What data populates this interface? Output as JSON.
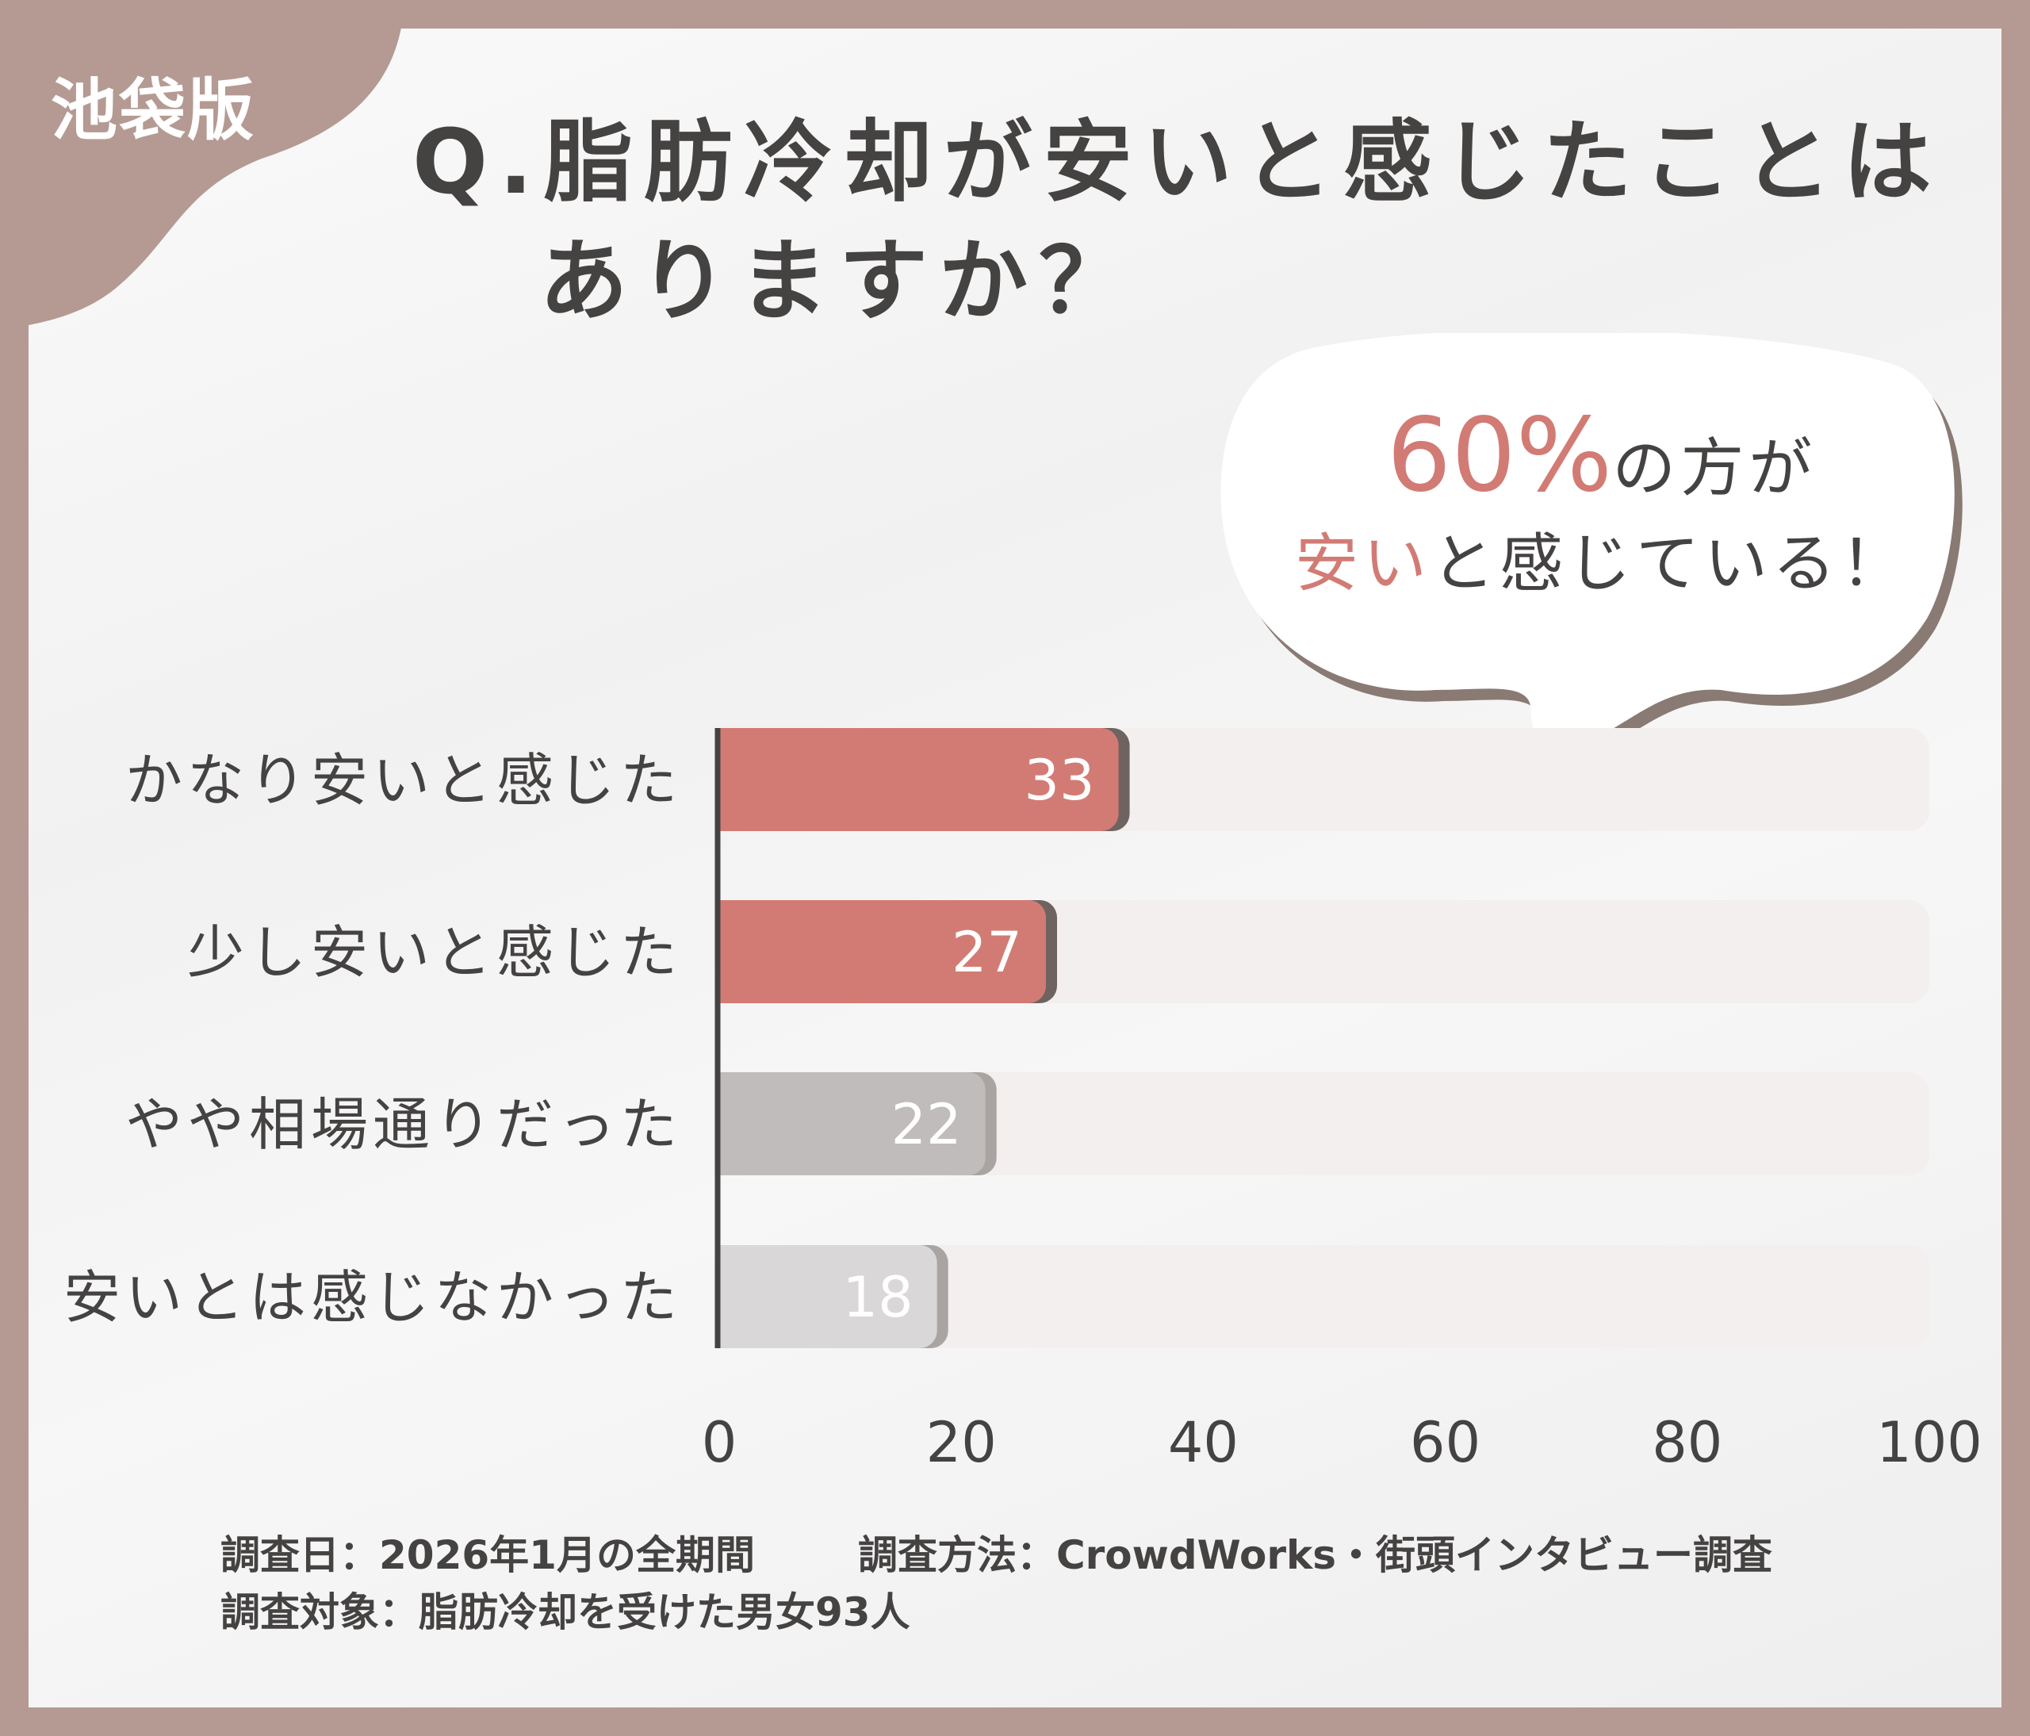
{
  "badge": "池袋版",
  "title": {
    "line1": "Q.脂肪冷却が安いと感じたことは",
    "line2": "ありますか？"
  },
  "callout": {
    "percent": "60%",
    "text1": "の方が",
    "highlight": "安い",
    "text2": "と感じている！"
  },
  "chart_data": {
    "type": "bar",
    "orientation": "horizontal",
    "categories": [
      "かなり安いと感じた",
      "少し安いと感じた",
      "やや相場通りだった",
      "安いとは感じなかった"
    ],
    "values": [
      33,
      27,
      22,
      18
    ],
    "xlim": [
      0,
      100
    ],
    "xticks": [
      "0",
      "20",
      "40",
      "60",
      "80",
      "100"
    ],
    "bar_colors": [
      "#d27b74",
      "#d27b74",
      "#c0bcbb",
      "#d9d7d7"
    ],
    "track_color": "#f2efee",
    "grid": false
  },
  "footer": {
    "date": "調査日：2026年1月の全期間",
    "method": "調査方法：CrowdWorks・街頭インタビュー調査",
    "target": "調査対象：脂肪冷却を受けた男女93人"
  }
}
